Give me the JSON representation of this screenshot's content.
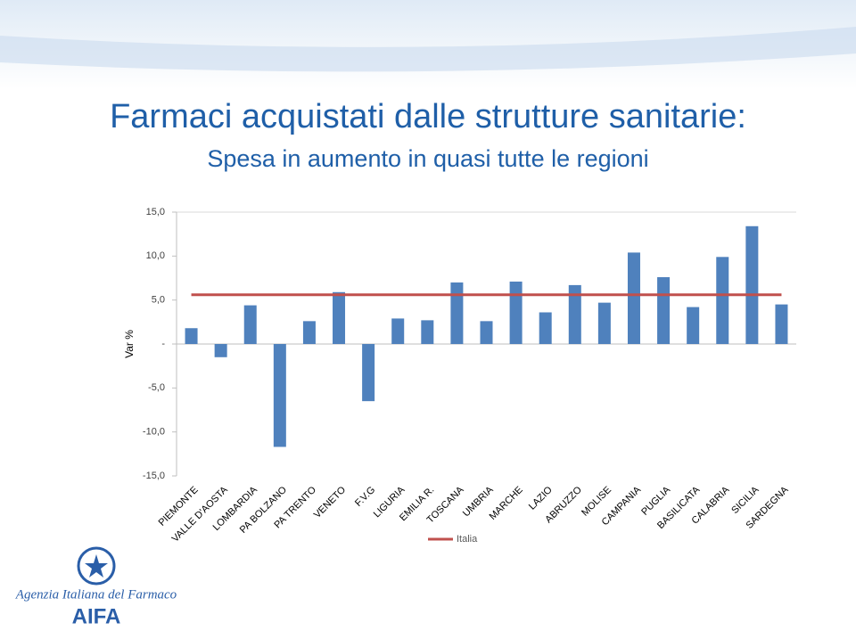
{
  "chart_data": {
    "type": "bar",
    "title": "Farmaci acquistati dalle strutture sanitarie:",
    "subtitle": "Spesa in aumento in quasi tutte le regioni",
    "y_label": "Var %",
    "categories": [
      "PIEMONTE",
      "VALLE D'AOSTA",
      "LOMBARDIA",
      "PA BOLZANO",
      "PA TRENTO",
      "VENETO",
      "F.V.G",
      "LIGURIA",
      "EMILIA R.",
      "TOSCANA",
      "UMBRIA",
      "MARCHE",
      "LAZIO",
      "ABRUZZO",
      "MOLISE",
      "CAMPANIA",
      "PUGLIA",
      "BASILICATA",
      "CALABRIA",
      "SICILIA",
      "SARDEGNA"
    ],
    "values": [
      1.8,
      -1.5,
      4.4,
      -11.7,
      2.6,
      5.9,
      -6.5,
      2.9,
      2.7,
      7.0,
      2.6,
      7.1,
      3.6,
      6.7,
      4.7,
      10.4,
      7.6,
      4.2,
      9.9,
      13.4,
      4.5
    ],
    "color": "#4f81bd",
    "reference_line": {
      "name": "Italia",
      "value": 5.6,
      "color": "#c0504d"
    },
    "ylim": [
      -15,
      15
    ],
    "yticks": [
      {
        "value": -15,
        "label": "-15,0"
      },
      {
        "value": -10,
        "label": "-10,0"
      },
      {
        "value": -5,
        "label": "-5,0"
      },
      {
        "value": 0,
        "label": "-"
      },
      {
        "value": 5,
        "label": "5,0"
      },
      {
        "value": 10,
        "label": "10,0"
      },
      {
        "value": 15,
        "label": "15,0"
      }
    ],
    "grid": false
  },
  "footer": {
    "agency": "Agenzia Italiana del Farmaco",
    "logo": "AIFA"
  }
}
